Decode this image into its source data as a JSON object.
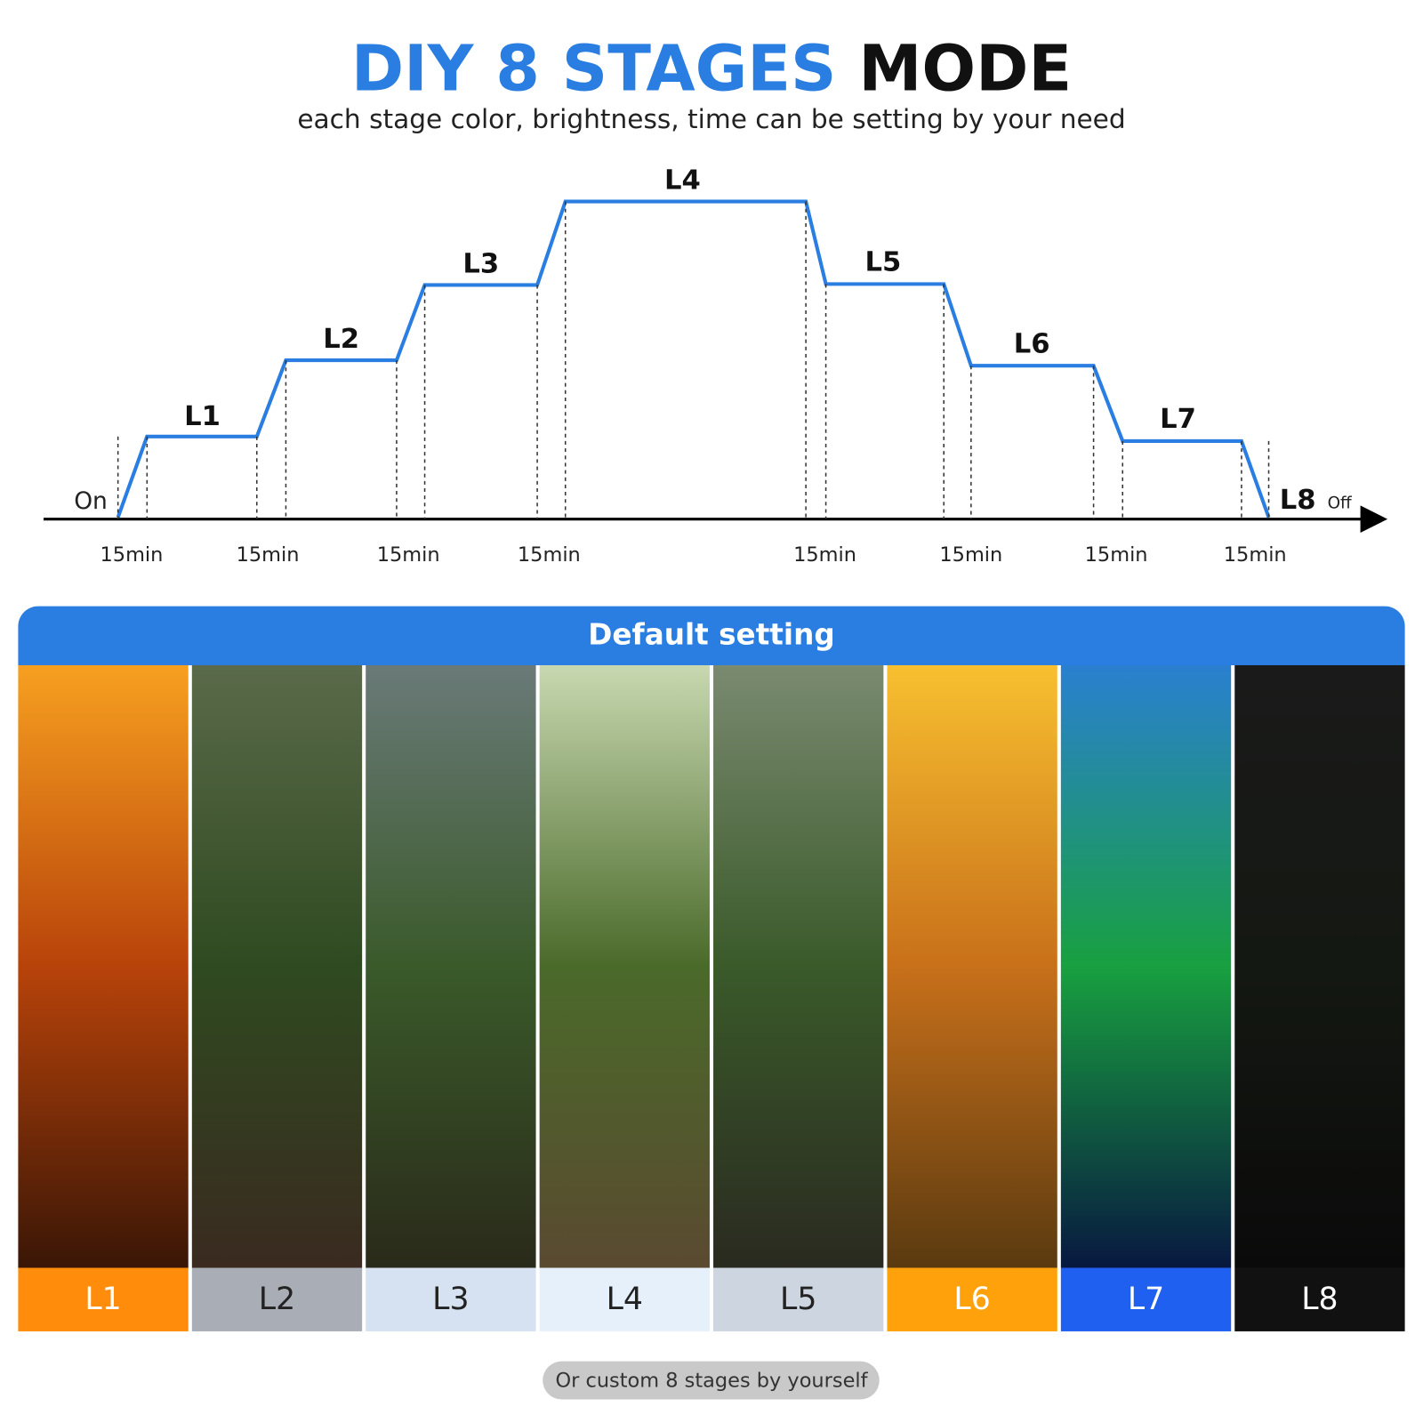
{
  "header": {
    "title_highlight": "DIY 8 STAGES",
    "title_rest": "MODE",
    "subtitle": "each stage color, brightness, time can be setting by your need"
  },
  "diagram": {
    "start": "On",
    "stages": [
      "L1",
      "L2",
      "L3",
      "L4",
      "L5",
      "L6",
      "L7"
    ],
    "end": "L8",
    "end_note": "Off",
    "intervals": [
      "15min",
      "15min",
      "15min",
      "15min",
      "15min",
      "15min",
      "15min",
      "15min"
    ]
  },
  "panel": {
    "title": "Default setting",
    "stages": [
      "L1",
      "L2",
      "L3",
      "L4",
      "L5",
      "L6",
      "L7",
      "L8"
    ]
  },
  "footer": {
    "button": "Or custom 8 stages by yourself"
  }
}
